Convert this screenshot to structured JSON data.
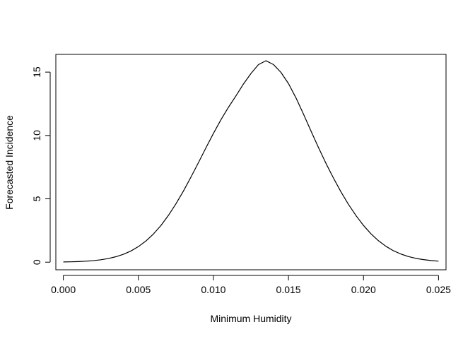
{
  "chart_data": {
    "type": "line",
    "title": "",
    "xlabel": "Minimum Humidity",
    "ylabel": "Forecasted Incidence",
    "xlim": [
      -0.0005,
      0.0255
    ],
    "ylim": [
      -0.6,
      16.4
    ],
    "grid": false,
    "legend": "none",
    "line_color": "#000000",
    "x_ticks": [
      {
        "value": 0.0,
        "label": "0.000"
      },
      {
        "value": 0.005,
        "label": "0.005"
      },
      {
        "value": 0.01,
        "label": "0.010"
      },
      {
        "value": 0.015,
        "label": "0.015"
      },
      {
        "value": 0.02,
        "label": "0.020"
      },
      {
        "value": 0.025,
        "label": "0.025"
      }
    ],
    "y_ticks": [
      {
        "value": 0,
        "label": "0"
      },
      {
        "value": 5,
        "label": "5"
      },
      {
        "value": 10,
        "label": "10"
      },
      {
        "value": 15,
        "label": "15"
      }
    ],
    "series": [
      {
        "x": [
          0.0,
          0.0005,
          0.001,
          0.0015,
          0.002,
          0.0025,
          0.003,
          0.0035,
          0.004,
          0.0045,
          0.005,
          0.0055,
          0.006,
          0.0065,
          0.007,
          0.0075,
          0.008,
          0.0085,
          0.009,
          0.0095,
          0.01,
          0.0105,
          0.011,
          0.0115,
          0.012,
          0.0125,
          0.013,
          0.0135,
          0.014,
          0.0145,
          0.015,
          0.0155,
          0.016,
          0.0165,
          0.017,
          0.0175,
          0.018,
          0.0185,
          0.019,
          0.0195,
          0.02,
          0.0205,
          0.021,
          0.0215,
          0.022,
          0.0225,
          0.023,
          0.0235,
          0.024,
          0.0245,
          0.025
        ],
        "y": [
          0.02,
          0.03,
          0.05,
          0.08,
          0.12,
          0.19,
          0.29,
          0.43,
          0.62,
          0.88,
          1.23,
          1.67,
          2.22,
          2.89,
          3.69,
          4.6,
          5.61,
          6.71,
          7.85,
          9.02,
          10.16,
          11.24,
          12.22,
          13.12,
          14.06,
          14.89,
          15.59,
          15.9,
          15.6,
          14.98,
          14.1,
          12.97,
          11.69,
          10.36,
          9.05,
          7.8,
          6.64,
          5.55,
          4.56,
          3.68,
          2.9,
          2.24,
          1.69,
          1.25,
          0.9,
          0.64,
          0.44,
          0.3,
          0.2,
          0.13,
          0.08
        ]
      }
    ]
  }
}
